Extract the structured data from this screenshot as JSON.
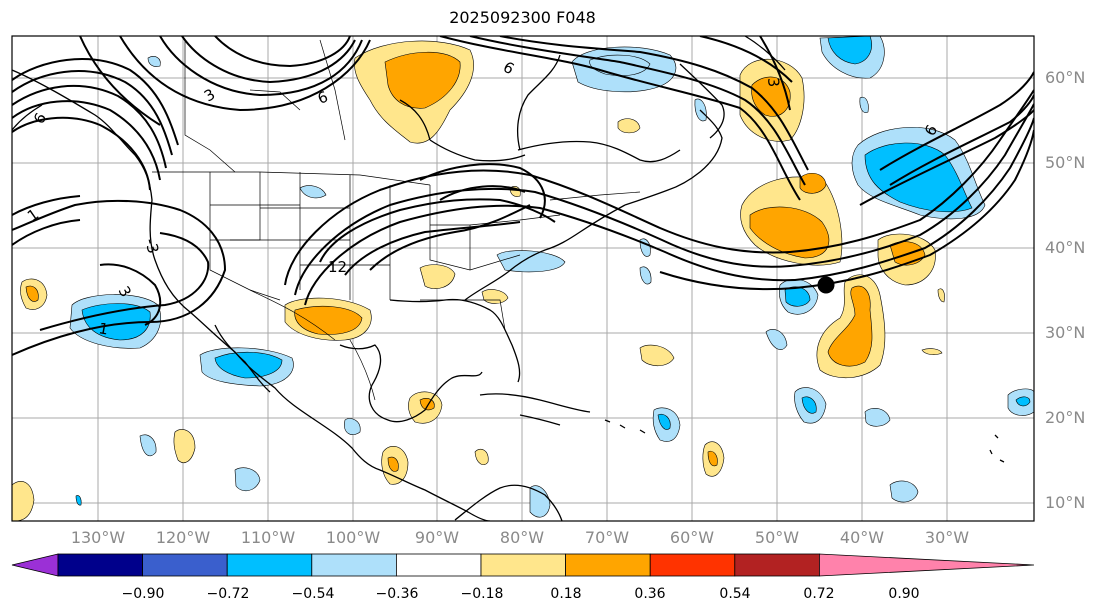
{
  "title": "2025092300 F048",
  "map": {
    "longitudes": [
      "130°W",
      "120°W",
      "110°W",
      "100°W",
      "90°W",
      "80°W",
      "70°W",
      "60°W",
      "50°W",
      "40°W",
      "30°W"
    ],
    "latitudes": [
      "60°N",
      "50°N",
      "40°N",
      "30°N",
      "20°N",
      "10°N"
    ],
    "contour_labels": [
      {
        "text": "1",
        "rot": -35
      },
      {
        "text": "1",
        "rot": 10
      },
      {
        "text": "3",
        "rot": 60
      },
      {
        "text": "-3",
        "rot": 75
      },
      {
        "text": "6",
        "rot": -60
      },
      {
        "text": "3",
        "rot": -30
      },
      {
        "text": "6",
        "rot": -20
      },
      {
        "text": "12",
        "rot": 0
      },
      {
        "text": "6",
        "rot": -60
      },
      {
        "text": "3",
        "rot": 85
      },
      {
        "text": "6",
        "rot": 30
      }
    ],
    "marker": "storm-center-dot"
  },
  "colorbar": {
    "ticks": [
      "−0.90",
      "−0.72",
      "−0.54",
      "−0.36",
      "−0.18",
      "0.18",
      "0.36",
      "0.54",
      "0.72",
      "0.90"
    ],
    "colors": [
      "#9b30d6",
      "#00008b",
      "#3a5fcd",
      "#00bfff",
      "#aee0fa",
      "#ffffff",
      "#ffe68c",
      "#ffa500",
      "#ff3300",
      "#b22222",
      "#ff82ab"
    ]
  }
}
